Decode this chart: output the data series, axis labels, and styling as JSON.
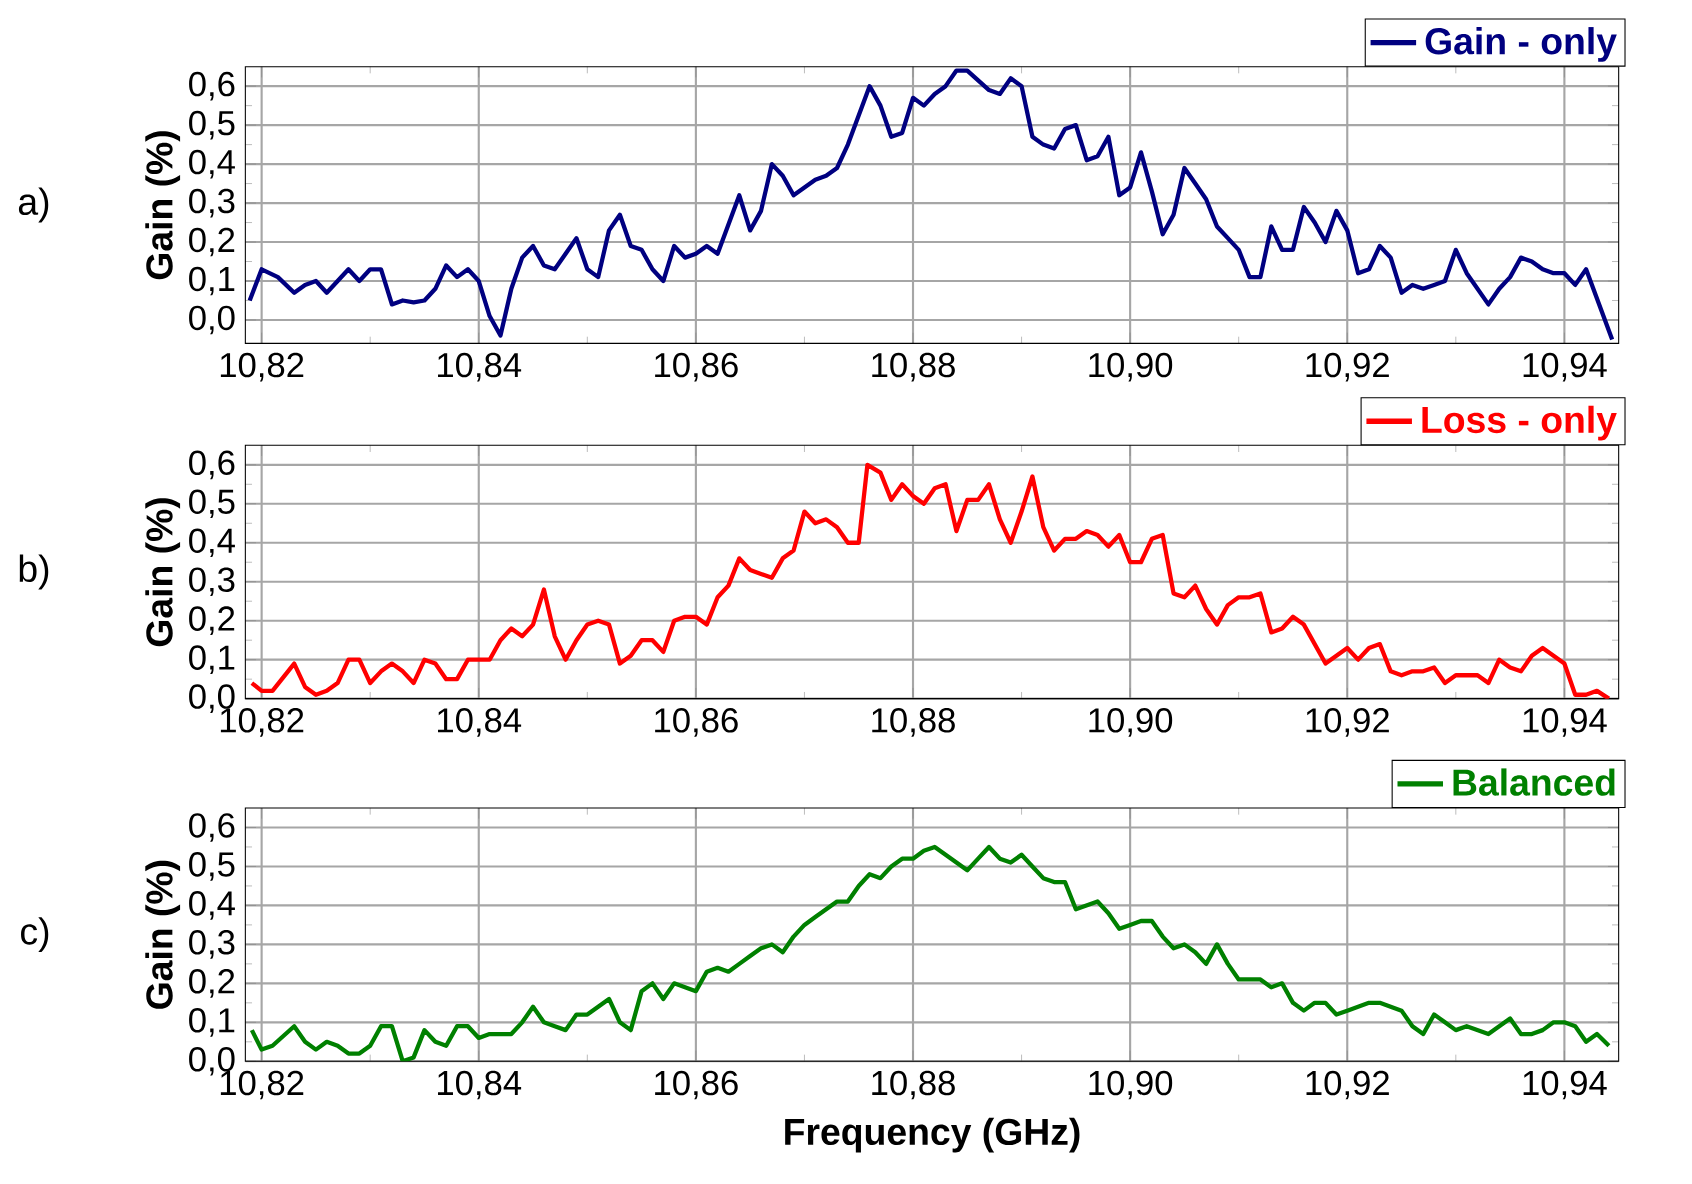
{
  "chart_data": [
    {
      "type": "line",
      "ylabel": "Gain (%)",
      "annotations": [
        "a)"
      ],
      "grid": true,
      "legend": "top right",
      "xlim": [
        10.8185,
        10.945
      ],
      "ylim": [
        -0.06,
        0.65
      ],
      "xticks": [
        {
          "value": 10.82,
          "label": "10,82"
        },
        {
          "value": 10.84,
          "label": "10,84"
        },
        {
          "value": 10.86,
          "label": "10,86"
        },
        {
          "value": 10.88,
          "label": "10,88"
        },
        {
          "value": 10.9,
          "label": "10,90"
        },
        {
          "value": 10.92,
          "label": "10,92"
        },
        {
          "value": 10.94,
          "label": "10,94"
        }
      ],
      "yticks": [
        {
          "value": 0,
          "label": "0,0"
        },
        {
          "value": 0.1,
          "label": "0,1"
        },
        {
          "value": 0.2,
          "label": "0,2"
        },
        {
          "value": 0.3,
          "label": "0,3"
        },
        {
          "value": 0.4,
          "label": "0,4"
        },
        {
          "value": 0.5,
          "label": "0,5"
        },
        {
          "value": 0.6,
          "label": "0,6"
        }
      ],
      "x": [
        10.8189,
        10.82,
        10.8215,
        10.823,
        10.824,
        10.825,
        10.826,
        10.828,
        10.829,
        10.83,
        10.831,
        10.832,
        10.833,
        10.834,
        10.835,
        10.836,
        10.837,
        10.838,
        10.839,
        10.84,
        10.841,
        10.842,
        10.843,
        10.844,
        10.845,
        10.846,
        10.847,
        10.848,
        10.849,
        10.85,
        10.851,
        10.852,
        10.853,
        10.854,
        10.855,
        10.856,
        10.857,
        10.858,
        10.859,
        10.86,
        10.861,
        10.862,
        10.864,
        10.865,
        10.866,
        10.867,
        10.868,
        10.869,
        10.87,
        10.871,
        10.872,
        10.873,
        10.874,
        10.876,
        10.877,
        10.878,
        10.879,
        10.88,
        10.881,
        10.882,
        10.883,
        10.884,
        10.885,
        10.887,
        10.888,
        10.889,
        10.89,
        10.891,
        10.892,
        10.893,
        10.894,
        10.895,
        10.896,
        10.897,
        10.898,
        10.899,
        10.9,
        10.901,
        10.902,
        10.903,
        10.904,
        10.905,
        10.906,
        10.907,
        10.908,
        10.909,
        10.91,
        10.911,
        10.912,
        10.913,
        10.914,
        10.915,
        10.916,
        10.917,
        10.918,
        10.919,
        10.92,
        10.921,
        10.922,
        10.923,
        10.924,
        10.925,
        10.926,
        10.927,
        10.928,
        10.929,
        10.93,
        10.931,
        10.932,
        10.933,
        10.934,
        10.935,
        10.936,
        10.937,
        10.938,
        10.939,
        10.94,
        10.941,
        10.942,
        10.9444
      ],
      "series": [
        {
          "name": "Gain - only",
          "color": "#000080",
          "values": [
            0.05,
            0.13,
            0.11,
            0.07,
            0.09,
            0.1,
            0.07,
            0.13,
            0.1,
            0.13,
            0.13,
            0.04,
            0.05,
            0.045,
            0.05,
            0.08,
            0.14,
            0.11,
            0.13,
            0.1,
            0.01,
            -0.04,
            0.08,
            0.16,
            0.19,
            0.14,
            0.13,
            0.17,
            0.21,
            0.13,
            0.11,
            0.23,
            0.27,
            0.19,
            0.18,
            0.13,
            0.1,
            0.19,
            0.16,
            0.17,
            0.19,
            0.17,
            0.32,
            0.23,
            0.28,
            0.4,
            0.37,
            0.32,
            0.34,
            0.36,
            0.37,
            0.39,
            0.45,
            0.6,
            0.55,
            0.47,
            0.48,
            0.57,
            0.55,
            0.58,
            0.6,
            0.64,
            0.64,
            0.59,
            0.58,
            0.62,
            0.6,
            0.47,
            0.45,
            0.44,
            0.49,
            0.5,
            0.41,
            0.42,
            0.47,
            0.32,
            0.34,
            0.43,
            0.33,
            0.22,
            0.27,
            0.39,
            0.35,
            0.31,
            0.24,
            0.21,
            0.18,
            0.11,
            0.11,
            0.24,
            0.18,
            0.18,
            0.29,
            0.25,
            0.2,
            0.28,
            0.23,
            0.12,
            0.13,
            0.19,
            0.16,
            0.07,
            0.09,
            0.08,
            0.09,
            0.1,
            0.18,
            0.12,
            0.08,
            0.04,
            0.08,
            0.11,
            0.16,
            0.15,
            0.13,
            0.12,
            0.12,
            0.09,
            0.13,
            -0.05
          ]
        }
      ]
    },
    {
      "type": "line",
      "ylabel": "Gain (%)",
      "annotations": [
        "b)"
      ],
      "grid": true,
      "legend": "top right",
      "xlim": [
        10.8185,
        10.945
      ],
      "ylim": [
        0,
        0.65
      ],
      "xticks": [
        {
          "value": 10.82,
          "label": "10,82"
        },
        {
          "value": 10.84,
          "label": "10,84"
        },
        {
          "value": 10.86,
          "label": "10,86"
        },
        {
          "value": 10.88,
          "label": "10,88"
        },
        {
          "value": 10.9,
          "label": "10,90"
        },
        {
          "value": 10.92,
          "label": "10,92"
        },
        {
          "value": 10.94,
          "label": "10,94"
        }
      ],
      "yticks": [
        {
          "value": 0,
          "label": "0,0"
        },
        {
          "value": 0.1,
          "label": "0,1"
        },
        {
          "value": 0.2,
          "label": "0,2"
        },
        {
          "value": 0.3,
          "label": "0,3"
        },
        {
          "value": 0.4,
          "label": "0,4"
        },
        {
          "value": 0.5,
          "label": "0,5"
        },
        {
          "value": 0.6,
          "label": "0,6"
        }
      ],
      "x": [
        10.8191,
        10.82,
        10.821,
        10.823,
        10.824,
        10.825,
        10.826,
        10.827,
        10.828,
        10.829,
        10.83,
        10.831,
        10.832,
        10.833,
        10.834,
        10.835,
        10.836,
        10.837,
        10.838,
        10.839,
        10.84,
        10.841,
        10.842,
        10.843,
        10.844,
        10.845,
        10.846,
        10.847,
        10.848,
        10.849,
        10.85,
        10.851,
        10.852,
        10.853,
        10.854,
        10.855,
        10.856,
        10.857,
        10.858,
        10.859,
        10.86,
        10.861,
        10.862,
        10.863,
        10.864,
        10.865,
        10.866,
        10.867,
        10.868,
        10.869,
        10.87,
        10.871,
        10.872,
        10.873,
        10.874,
        10.875,
        10.8758,
        10.877,
        10.878,
        10.879,
        10.88,
        10.881,
        10.882,
        10.883,
        10.884,
        10.885,
        10.886,
        10.887,
        10.888,
        10.889,
        10.89,
        10.891,
        10.892,
        10.893,
        10.894,
        10.895,
        10.896,
        10.897,
        10.898,
        10.899,
        10.9,
        10.901,
        10.902,
        10.903,
        10.904,
        10.905,
        10.906,
        10.907,
        10.908,
        10.909,
        10.91,
        10.911,
        10.912,
        10.913,
        10.914,
        10.915,
        10.916,
        10.917,
        10.918,
        10.919,
        10.92,
        10.921,
        10.922,
        10.923,
        10.924,
        10.925,
        10.926,
        10.927,
        10.928,
        10.929,
        10.93,
        10.931,
        10.932,
        10.933,
        10.934,
        10.935,
        10.936,
        10.937,
        10.938,
        10.939,
        10.94,
        10.941,
        10.942,
        10.943,
        10.9441
      ],
      "series": [
        {
          "name": "Loss - only",
          "color": "#ff0000",
          "values": [
            0.04,
            0.02,
            0.02,
            0.09,
            0.03,
            0.01,
            0.02,
            0.04,
            0.1,
            0.1,
            0.04,
            0.07,
            0.09,
            0.07,
            0.04,
            0.1,
            0.09,
            0.05,
            0.05,
            0.1,
            0.1,
            0.1,
            0.15,
            0.18,
            0.16,
            0.19,
            0.28,
            0.16,
            0.1,
            0.15,
            0.19,
            0.2,
            0.19,
            0.09,
            0.11,
            0.15,
            0.15,
            0.12,
            0.2,
            0.21,
            0.21,
            0.19,
            0.26,
            0.29,
            0.36,
            0.33,
            0.32,
            0.31,
            0.36,
            0.38,
            0.48,
            0.45,
            0.46,
            0.44,
            0.4,
            0.4,
            0.6,
            0.58,
            0.51,
            0.55,
            0.52,
            0.5,
            0.54,
            0.55,
            0.43,
            0.51,
            0.51,
            0.55,
            0.46,
            0.4,
            0.48,
            0.57,
            0.44,
            0.38,
            0.41,
            0.41,
            0.43,
            0.42,
            0.39,
            0.42,
            0.35,
            0.35,
            0.41,
            0.42,
            0.27,
            0.26,
            0.29,
            0.23,
            0.19,
            0.24,
            0.26,
            0.26,
            0.27,
            0.17,
            0.18,
            0.21,
            0.19,
            0.14,
            0.09,
            0.11,
            0.13,
            0.1,
            0.13,
            0.14,
            0.07,
            0.06,
            0.07,
            0.07,
            0.08,
            0.04,
            0.06,
            0.06,
            0.06,
            0.04,
            0.1,
            0.08,
            0.07,
            0.11,
            0.13,
            0.11,
            0.09,
            0.01,
            0.01,
            0.02,
            0.0
          ]
        }
      ]
    },
    {
      "type": "line",
      "ylabel": "Gain (%)",
      "xlabel": "Frequency (GHz)",
      "annotations": [
        "c)"
      ],
      "grid": true,
      "legend": "top right",
      "xlim": [
        10.8185,
        10.945
      ],
      "ylim": [
        0,
        0.65
      ],
      "xticks": [
        {
          "value": 10.82,
          "label": "10,82"
        },
        {
          "value": 10.84,
          "label": "10,84"
        },
        {
          "value": 10.86,
          "label": "10,86"
        },
        {
          "value": 10.88,
          "label": "10,88"
        },
        {
          "value": 10.9,
          "label": "10,90"
        },
        {
          "value": 10.92,
          "label": "10,92"
        },
        {
          "value": 10.94,
          "label": "10,94"
        }
      ],
      "yticks": [
        {
          "value": 0,
          "label": "0,0"
        },
        {
          "value": 0.1,
          "label": "0,1"
        },
        {
          "value": 0.2,
          "label": "0,2"
        },
        {
          "value": 0.3,
          "label": "0,3"
        },
        {
          "value": 0.4,
          "label": "0,4"
        },
        {
          "value": 0.5,
          "label": "0,5"
        },
        {
          "value": 0.6,
          "label": "0,6"
        }
      ],
      "x": [
        10.8191,
        10.82,
        10.821,
        10.823,
        10.824,
        10.825,
        10.826,
        10.827,
        10.828,
        10.829,
        10.83,
        10.831,
        10.832,
        10.833,
        10.834,
        10.835,
        10.836,
        10.837,
        10.838,
        10.839,
        10.84,
        10.841,
        10.842,
        10.843,
        10.844,
        10.845,
        10.846,
        10.847,
        10.848,
        10.849,
        10.85,
        10.851,
        10.852,
        10.853,
        10.854,
        10.855,
        10.856,
        10.857,
        10.858,
        10.859,
        10.86,
        10.861,
        10.862,
        10.863,
        10.864,
        10.865,
        10.866,
        10.867,
        10.868,
        10.869,
        10.87,
        10.871,
        10.872,
        10.873,
        10.874,
        10.875,
        10.876,
        10.877,
        10.878,
        10.879,
        10.88,
        10.881,
        10.882,
        10.883,
        10.884,
        10.885,
        10.886,
        10.887,
        10.888,
        10.889,
        10.89,
        10.891,
        10.892,
        10.893,
        10.894,
        10.895,
        10.896,
        10.897,
        10.898,
        10.899,
        10.9,
        10.901,
        10.902,
        10.903,
        10.904,
        10.905,
        10.906,
        10.907,
        10.908,
        10.909,
        10.91,
        10.911,
        10.912,
        10.913,
        10.914,
        10.915,
        10.916,
        10.917,
        10.918,
        10.919,
        10.92,
        10.921,
        10.922,
        10.923,
        10.924,
        10.925,
        10.926,
        10.927,
        10.928,
        10.929,
        10.93,
        10.931,
        10.932,
        10.933,
        10.934,
        10.935,
        10.936,
        10.937,
        10.938,
        10.939,
        10.94,
        10.941,
        10.942,
        10.943,
        10.9441
      ],
      "series": [
        {
          "name": "Balanced",
          "color": "#008000",
          "values": [
            0.08,
            0.03,
            0.04,
            0.09,
            0.05,
            0.03,
            0.05,
            0.04,
            0.02,
            0.02,
            0.04,
            0.09,
            0.09,
            0.0,
            0.01,
            0.08,
            0.05,
            0.04,
            0.09,
            0.09,
            0.06,
            0.07,
            0.07,
            0.07,
            0.1,
            0.14,
            0.1,
            0.09,
            0.08,
            0.12,
            0.12,
            0.14,
            0.16,
            0.1,
            0.08,
            0.18,
            0.2,
            0.16,
            0.2,
            0.19,
            0.18,
            0.23,
            0.24,
            0.23,
            0.25,
            0.27,
            0.29,
            0.3,
            0.28,
            0.32,
            0.35,
            0.37,
            0.39,
            0.41,
            0.41,
            0.45,
            0.48,
            0.47,
            0.5,
            0.52,
            0.52,
            0.54,
            0.55,
            0.53,
            0.51,
            0.49,
            0.52,
            0.55,
            0.52,
            0.51,
            0.53,
            0.5,
            0.47,
            0.46,
            0.46,
            0.39,
            0.4,
            0.41,
            0.38,
            0.34,
            0.35,
            0.36,
            0.36,
            0.32,
            0.29,
            0.3,
            0.28,
            0.25,
            0.3,
            0.25,
            0.21,
            0.21,
            0.21,
            0.19,
            0.2,
            0.15,
            0.13,
            0.15,
            0.15,
            0.12,
            0.13,
            0.14,
            0.15,
            0.15,
            0.14,
            0.13,
            0.09,
            0.07,
            0.12,
            0.1,
            0.08,
            0.09,
            0.08,
            0.07,
            0.09,
            0.11,
            0.07,
            0.07,
            0.08,
            0.1,
            0.1,
            0.09,
            0.05,
            0.07,
            0.04
          ]
        }
      ]
    }
  ]
}
